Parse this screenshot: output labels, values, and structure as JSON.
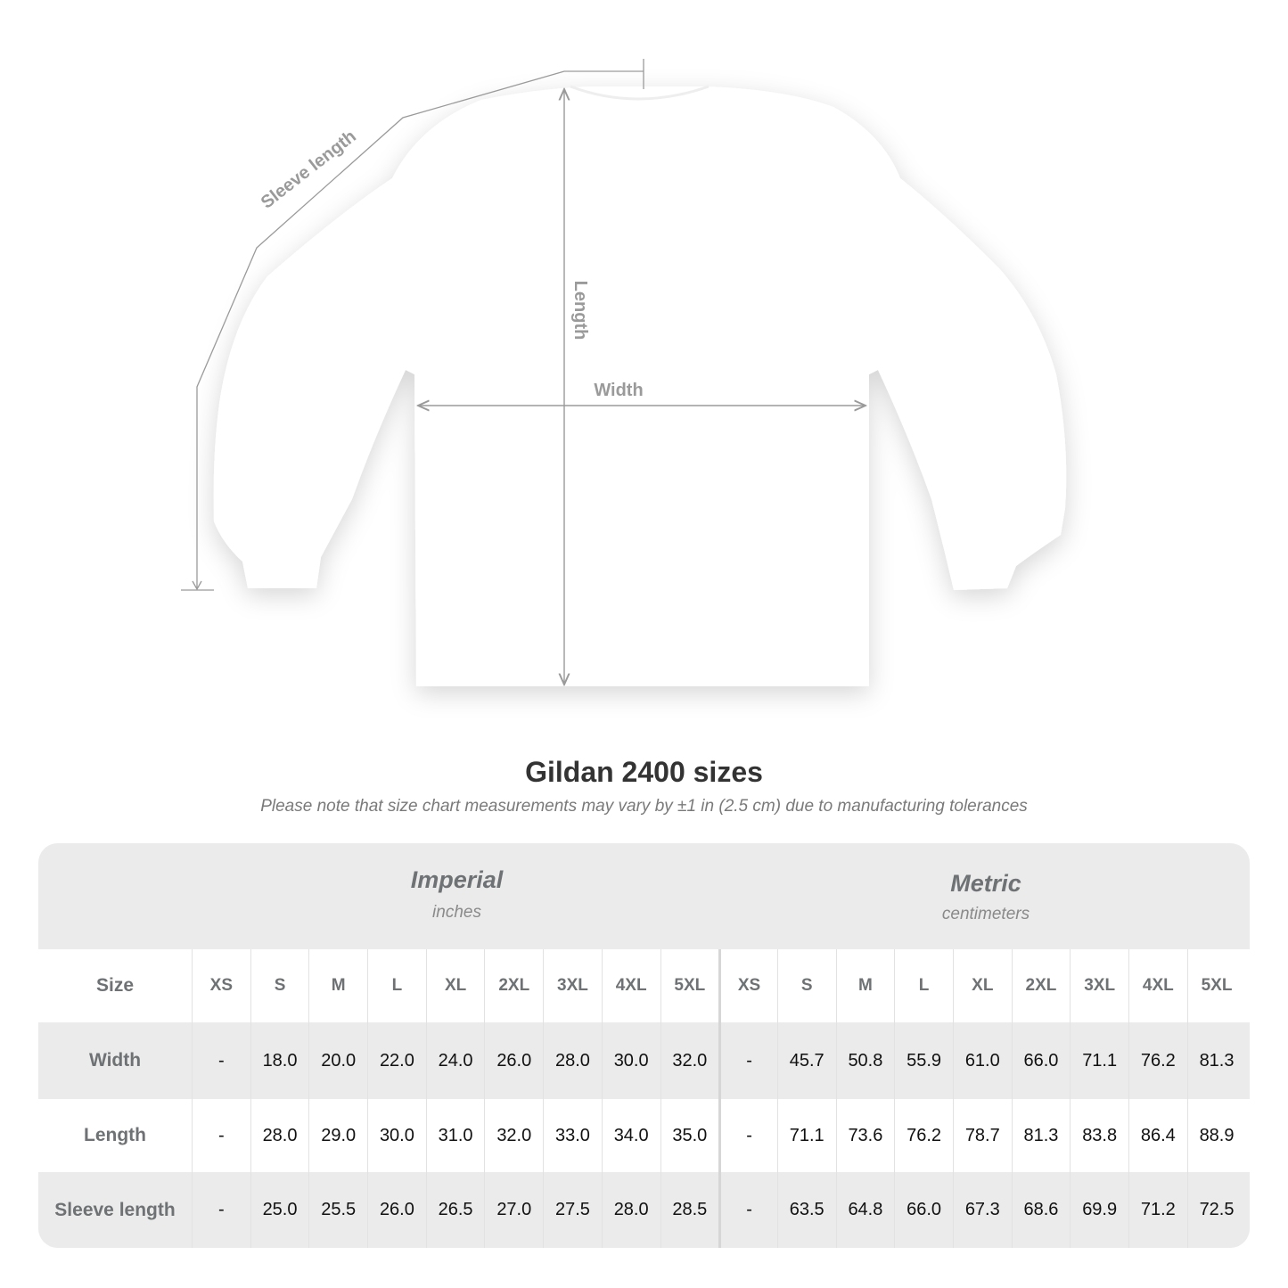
{
  "diagram": {
    "labels": {
      "sleeve": "Sleeve length",
      "length": "Length",
      "width": "Width"
    }
  },
  "title": "Gildan 2400 sizes",
  "subtitle": "Please note that size chart measurements may vary by ±1 in (2.5 cm) due to manufacturing tolerances",
  "imperial": {
    "name": "Imperial",
    "unit": "inches"
  },
  "metric": {
    "name": "Metric",
    "unit": "centimeters"
  },
  "size_label": "Size",
  "sizes": [
    "XS",
    "S",
    "M",
    "L",
    "XL",
    "2XL",
    "3XL",
    "4XL",
    "5XL"
  ],
  "rows": [
    {
      "label": "Width",
      "imperial": [
        "-",
        "18.0",
        "20.0",
        "22.0",
        "24.0",
        "26.0",
        "28.0",
        "30.0",
        "32.0"
      ],
      "metric": [
        "-",
        "45.7",
        "50.8",
        "55.9",
        "61.0",
        "66.0",
        "71.1",
        "76.2",
        "81.3"
      ]
    },
    {
      "label": "Length",
      "imperial": [
        "-",
        "28.0",
        "29.0",
        "30.0",
        "31.0",
        "32.0",
        "33.0",
        "34.0",
        "35.0"
      ],
      "metric": [
        "-",
        "71.1",
        "73.6",
        "76.2",
        "78.7",
        "81.3",
        "83.8",
        "86.4",
        "88.9"
      ]
    },
    {
      "label": "Sleeve length",
      "imperial": [
        "-",
        "25.0",
        "25.5",
        "26.0",
        "26.5",
        "27.0",
        "27.5",
        "28.0",
        "28.5"
      ],
      "metric": [
        "-",
        "63.5",
        "64.8",
        "66.0",
        "67.3",
        "68.6",
        "69.9",
        "71.2",
        "72.5"
      ]
    }
  ],
  "colors": {
    "panel": "#ebebeb",
    "header_text": "#6f7274",
    "measure_line": "#9a9a9a"
  }
}
